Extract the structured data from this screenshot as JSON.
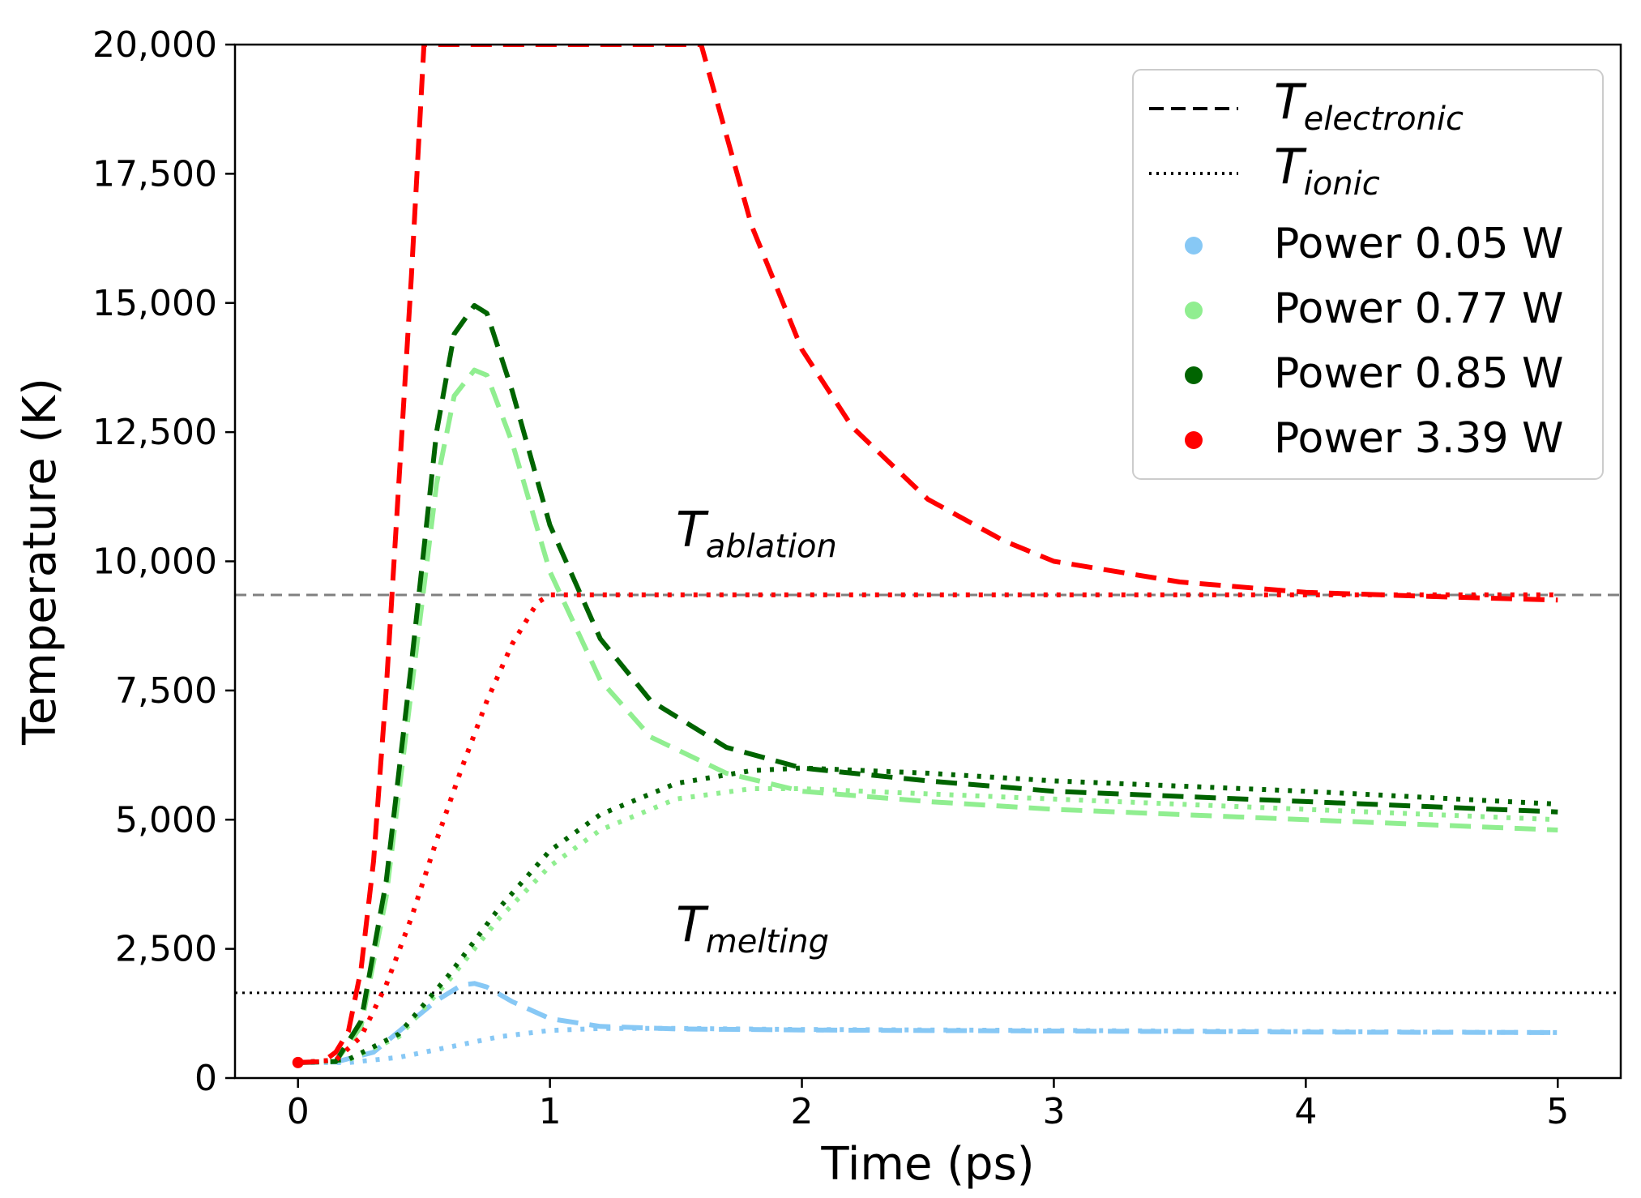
{
  "chart_data": {
    "type": "line",
    "title": "",
    "xlabel": "Time (ps)",
    "ylabel": "Temperature (K)",
    "xlim": [
      -0.25,
      5.25
    ],
    "ylim": [
      0,
      20000
    ],
    "xticks": [
      0,
      1,
      2,
      3,
      4,
      5
    ],
    "xtick_labels": [
      "0",
      "1",
      "2",
      "3",
      "4",
      "5"
    ],
    "yticks": [
      0,
      2500,
      5000,
      7500,
      10000,
      12500,
      15000,
      17500,
      20000
    ],
    "ytick_labels": [
      "0",
      "2,500",
      "5,000",
      "7,500",
      "10,000",
      "12,500",
      "15,000",
      "17,500",
      "20,000"
    ],
    "grid": false,
    "legend_position": "top-right",
    "legend": {
      "styles": [
        {
          "name": "electronic-style",
          "symbol": "T",
          "subscript": "electronic",
          "dash": "dashed",
          "color": "#000000"
        },
        {
          "name": "ionic-style",
          "symbol": "T",
          "subscript": "ionic",
          "dash": "dotted",
          "color": "#000000"
        }
      ],
      "powers": [
        {
          "label": "Power 0.05 W",
          "color": "#87c8f5"
        },
        {
          "label": "Power 0.77 W",
          "color": "#90ee90"
        },
        {
          "label": "Power 0.85 W",
          "color": "#006400"
        },
        {
          "label": "Power 3.39 W",
          "color": "#ff0000"
        }
      ]
    },
    "reference_lines": [
      {
        "name": "ablation-line",
        "y": 9350,
        "symbol": "T",
        "subscript": "ablation",
        "color": "#808080",
        "dash": "dashed",
        "label_x": 1.5,
        "label_y": 10300
      },
      {
        "name": "melting-line",
        "y": 1650,
        "symbol": "T",
        "subscript": "melting",
        "color": "#000000",
        "dash": "dotted",
        "label_x": 1.5,
        "label_y": 2650
      }
    ],
    "series": [
      {
        "name": "Power 0.05 W",
        "kind": "electronic",
        "color": "#87c8f5",
        "x": [
          0,
          0.15,
          0.3,
          0.45,
          0.55,
          0.65,
          0.7,
          0.75,
          0.85,
          1.0,
          1.2,
          1.5,
          2.0,
          3.0,
          4.0,
          5.0
        ],
        "y": [
          300,
          310,
          500,
          1100,
          1500,
          1800,
          1830,
          1760,
          1480,
          1150,
          1000,
          950,
          930,
          910,
          890,
          880
        ]
      },
      {
        "name": "Power 0.05 W",
        "kind": "ionic",
        "color": "#87c8f5",
        "x": [
          0,
          0.2,
          0.4,
          0.6,
          0.8,
          1.0,
          1.2,
          1.5,
          2.0,
          3.0,
          4.0,
          5.0
        ],
        "y": [
          300,
          300,
          400,
          600,
          800,
          920,
          960,
          960,
          940,
          920,
          900,
          880
        ]
      },
      {
        "name": "Power 0.77 W",
        "kind": "electronic",
        "color": "#90ee90",
        "x": [
          0,
          0.15,
          0.25,
          0.35,
          0.45,
          0.55,
          0.62,
          0.7,
          0.75,
          0.85,
          1.0,
          1.2,
          1.4,
          1.7,
          2.0,
          2.5,
          3.0,
          4.0,
          5.0
        ],
        "y": [
          300,
          320,
          1000,
          3500,
          7500,
          11500,
          13200,
          13700,
          13600,
          12300,
          9800,
          7700,
          6600,
          5900,
          5550,
          5350,
          5200,
          5000,
          4800
        ]
      },
      {
        "name": "Power 0.77 W",
        "kind": "ionic",
        "color": "#90ee90",
        "x": [
          0,
          0.2,
          0.4,
          0.6,
          0.8,
          1.0,
          1.2,
          1.5,
          1.8,
          2.0,
          2.5,
          3.0,
          4.0,
          5.0
        ],
        "y": [
          300,
          350,
          800,
          1900,
          3100,
          4100,
          4800,
          5400,
          5600,
          5600,
          5500,
          5400,
          5200,
          5000
        ]
      },
      {
        "name": "Power 0.85 W",
        "kind": "electronic",
        "color": "#006400",
        "x": [
          0,
          0.15,
          0.25,
          0.35,
          0.45,
          0.55,
          0.62,
          0.7,
          0.75,
          0.85,
          1.0,
          1.2,
          1.4,
          1.7,
          2.0,
          2.5,
          3.0,
          4.0,
          5.0
        ],
        "y": [
          300,
          320,
          1100,
          3800,
          8000,
          12500,
          14400,
          14950,
          14800,
          13300,
          10700,
          8500,
          7300,
          6400,
          6000,
          5750,
          5550,
          5350,
          5150
        ]
      },
      {
        "name": "Power 0.85 W",
        "kind": "ionic",
        "color": "#006400",
        "x": [
          0,
          0.2,
          0.4,
          0.6,
          0.8,
          1.0,
          1.2,
          1.5,
          1.8,
          2.0,
          2.5,
          3.0,
          4.0,
          5.0
        ],
        "y": [
          300,
          360,
          850,
          2000,
          3300,
          4400,
          5100,
          5700,
          5950,
          6000,
          5900,
          5750,
          5550,
          5300
        ]
      },
      {
        "name": "Power 3.39 W",
        "kind": "electronic",
        "color": "#ff0000",
        "x": [
          0,
          0.1,
          0.15,
          0.2,
          0.25,
          0.3,
          0.35,
          0.4,
          0.45,
          0.5,
          1.6,
          1.8,
          2.0,
          2.2,
          2.5,
          2.8,
          3.0,
          3.5,
          4.0,
          4.5,
          5.0
        ],
        "y": [
          300,
          320,
          500,
          900,
          2100,
          4200,
          7500,
          11500,
          15500,
          20000,
          20000,
          16500,
          14100,
          12600,
          11200,
          10400,
          10000,
          9600,
          9400,
          9320,
          9250
        ]
      },
      {
        "name": "Power 3.39 W",
        "kind": "ionic",
        "color": "#ff0000",
        "x": [
          0,
          0.15,
          0.25,
          0.35,
          0.45,
          0.55,
          0.65,
          0.75,
          0.85,
          0.95,
          1.0,
          1.5,
          2.0,
          3.0,
          4.0,
          5.0
        ],
        "y": [
          300,
          350,
          800,
          1800,
          3100,
          4600,
          6000,
          7300,
          8400,
          9200,
          9350,
          9350,
          9350,
          9350,
          9350,
          9350
        ]
      }
    ]
  }
}
